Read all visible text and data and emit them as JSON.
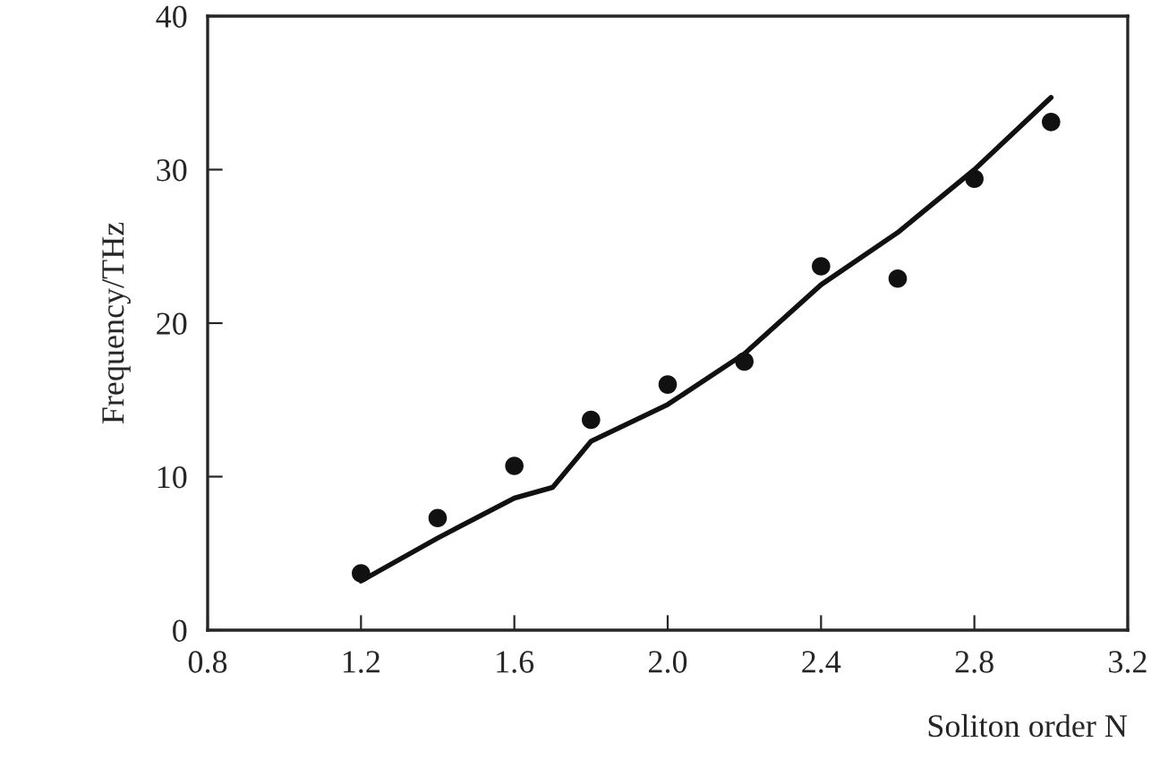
{
  "chart_data": {
    "type": "scatter",
    "xlabel": "Soliton order N",
    "ylabel": "Frequency/THz",
    "xlim": [
      0.8,
      3.2
    ],
    "xticks": [
      {
        "value": 0.8,
        "label": "0.8"
      },
      {
        "value": 1.2,
        "label": "1.2"
      },
      {
        "value": 1.6,
        "label": "1.6"
      },
      {
        "value": 2.0,
        "label": "2.0"
      },
      {
        "value": 2.4,
        "label": "2.4"
      },
      {
        "value": 2.8,
        "label": "2.8"
      },
      {
        "value": 3.2,
        "label": "3.2"
      }
    ],
    "ylim": [
      0,
      40
    ],
    "yticks": [
      0,
      10,
      20,
      30,
      40
    ],
    "grid": false,
    "legend": false,
    "series": [
      {
        "color": "#111111",
        "marker": "circle",
        "x": [
          1.2,
          1.4,
          1.6,
          1.8,
          2.0,
          2.2,
          2.4,
          2.6,
          2.8,
          3.0
        ],
        "values": [
          3.7,
          7.3,
          10.7,
          13.7,
          16.0,
          17.5,
          23.7,
          22.9,
          29.4,
          33.1
        ]
      },
      {
        "type": "line",
        "color": "#111111",
        "marker": "none",
        "line_style": "solid",
        "x": [
          1.2,
          1.4,
          1.6,
          1.7,
          1.8,
          2.0,
          2.2,
          2.4,
          2.6,
          2.8,
          3.0
        ],
        "values": [
          3.2,
          6.0,
          8.6,
          9.3,
          12.3,
          14.7,
          18.0,
          22.5,
          25.9,
          30.0,
          34.7
        ]
      }
    ]
  }
}
